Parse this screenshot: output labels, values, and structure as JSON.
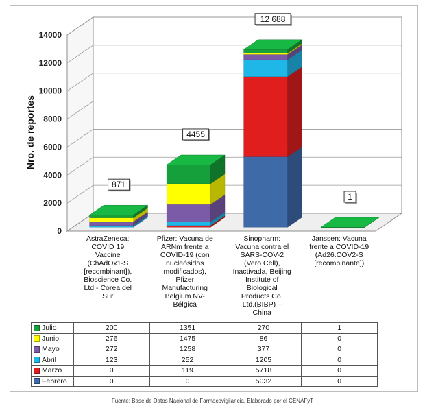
{
  "colors": {
    "Julio": "#15a03b",
    "Junio": "#ffff00",
    "Mayo": "#7b5ba8",
    "Abril": "#1fb6e8",
    "Marzo": "#e01e1e",
    "Febrero": "#3e6aa8"
  },
  "chart_data": {
    "type": "bar",
    "stacked": true,
    "three_d": true,
    "ylabel": "Nro. de reportes",
    "ylim": [
      0,
      14000
    ],
    "yticks": [
      0,
      2000,
      4000,
      6000,
      8000,
      10000,
      12000,
      14000
    ],
    "categories": [
      "AstraZeneca: COVID 19 Vaccine (ChAdOx1-S [recombinant]), Bioscience Co. Ltd - Corea del Sur",
      "Pfizer: Vacuna de ARNm frente a COVID-19 (con nucleósidos modificados), Pfizer Manufacturing Belgium NV-Bélgica",
      "Sinopharm: Vacuna contra el SARS-COV-2 (Vero Cell), Inactivada, Beijing Institute of Biological Products Co. Ltd.(BIBP) – China",
      "Janssen: Vacuna frente a COVID-19 (Ad26.COV2-S [recombinante])"
    ],
    "category_lines": [
      [
        "AstraZeneca:",
        "COVID 19",
        "Vaccine",
        "(ChAdOx1-S",
        "[recombinant]),",
        "Bioscience Co.",
        "Ltd - Corea del",
        "Sur"
      ],
      [
        "Pfizer: Vacuna de",
        "ARNm frente a",
        "COVID-19 (con",
        "nucleósidos",
        "modificados),",
        "Pfizer",
        "Manufacturing",
        "Belgium NV-",
        "Bélgica"
      ],
      [
        "Sinopharm:",
        "Vacuna contra el",
        "SARS-COV-2",
        "(Vero Cell),",
        "Inactivada, Beijing",
        "Institute of",
        "Biological",
        "Products Co.",
        "Ltd.(BIBP) –",
        "China"
      ],
      [
        "Janssen: Vacuna",
        "frente a COVID-19",
        "(Ad26.COV2-S",
        "[recombinante])"
      ]
    ],
    "series": [
      {
        "name": "Julio",
        "values": [
          200,
          1351,
          270,
          1
        ]
      },
      {
        "name": "Junio",
        "values": [
          276,
          1475,
          86,
          0
        ]
      },
      {
        "name": "Mayo",
        "values": [
          272,
          1258,
          377,
          0
        ]
      },
      {
        "name": "Abril",
        "values": [
          123,
          252,
          1205,
          0
        ]
      },
      {
        "name": "Marzo",
        "values": [
          0,
          119,
          5718,
          0
        ]
      },
      {
        "name": "Febrero",
        "values": [
          0,
          0,
          5032,
          0
        ]
      }
    ],
    "totals": [
      "871",
      "4455",
      "12 688",
      "1"
    ],
    "grid": true
  },
  "source": "Fuente: Base de Datos Nacional de Farmacovigilancia. Elaborado por el CENAFyT"
}
